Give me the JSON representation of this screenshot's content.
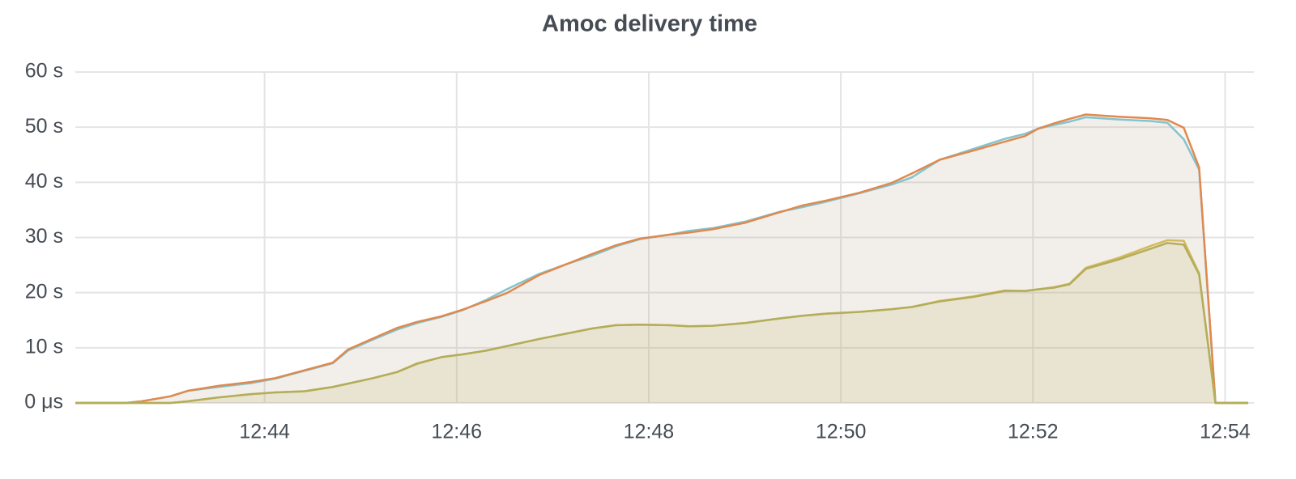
{
  "chart_data": {
    "type": "line",
    "title": "Amoc delivery time",
    "x": [
      42.03,
      42.55,
      42.72,
      43.02,
      43.2,
      43.52,
      43.86,
      44.11,
      44.41,
      44.71,
      44.87,
      45.13,
      45.38,
      45.59,
      45.84,
      46.06,
      46.31,
      46.52,
      46.86,
      47.15,
      47.41,
      47.66,
      47.91,
      48.21,
      48.42,
      48.67,
      49.01,
      49.35,
      49.6,
      49.85,
      50.19,
      50.53,
      50.74,
      51.03,
      51.37,
      51.71,
      51.92,
      52.05,
      52.22,
      52.38,
      52.55,
      52.89,
      53.23,
      53.4,
      53.57,
      53.73,
      53.9,
      54.24
    ],
    "series": [
      {
        "color": "#82c4cf",
        "values": [
          0,
          0,
          0.3,
          1.2,
          2.2,
          2.9,
          3.6,
          4.4,
          5.8,
          7.2,
          9.5,
          11.5,
          13.3,
          14.5,
          15.6,
          16.8,
          18.7,
          20.6,
          23.4,
          25.2,
          26.7,
          28.4,
          29.7,
          30.5,
          31.2,
          31.7,
          32.9,
          34.6,
          35.5,
          36.5,
          38.0,
          39.6,
          40.9,
          44.1,
          46.0,
          47.9,
          48.8,
          49.7,
          50.4,
          51.0,
          51.8,
          51.4,
          51.1,
          50.8,
          47.8,
          42.3,
          0,
          0
        ]
      },
      {
        "color": "#e0894e",
        "values": [
          0,
          0,
          0.3,
          1.2,
          2.2,
          3.1,
          3.8,
          4.5,
          5.9,
          7.3,
          9.7,
          11.7,
          13.6,
          14.7,
          15.7,
          16.9,
          18.5,
          19.9,
          23.2,
          25.2,
          27.0,
          28.6,
          29.8,
          30.5,
          30.9,
          31.5,
          32.7,
          34.5,
          35.8,
          36.7,
          38.1,
          39.9,
          41.6,
          44.1,
          45.7,
          47.4,
          48.4,
          49.7,
          50.7,
          51.5,
          52.3,
          51.9,
          51.6,
          51.3,
          49.9,
          42.7,
          0,
          0
        ]
      },
      {
        "color": "#d4b95e",
        "values": [
          0,
          0,
          0,
          0,
          0.3,
          1.0,
          1.6,
          1.9,
          2.1,
          2.9,
          3.5,
          4.5,
          5.6,
          7.2,
          8.3,
          8.8,
          9.5,
          10.3,
          11.6,
          12.6,
          13.5,
          14.1,
          14.2,
          14.1,
          13.9,
          14.0,
          14.5,
          15.3,
          15.8,
          16.2,
          16.5,
          17.0,
          17.4,
          18.5,
          19.3,
          20.4,
          20.3,
          20.6,
          21.0,
          21.6,
          24.5,
          26.3,
          28.5,
          29.5,
          29.4,
          23.5,
          0,
          0
        ]
      },
      {
        "color": "#b3ad5a",
        "values": [
          0,
          0,
          0,
          0,
          0.3,
          1.0,
          1.6,
          1.9,
          2.1,
          2.9,
          3.5,
          4.5,
          5.6,
          7.1,
          8.3,
          8.8,
          9.5,
          10.3,
          11.6,
          12.6,
          13.5,
          14.1,
          14.2,
          14.1,
          13.9,
          14.0,
          14.5,
          15.3,
          15.8,
          16.2,
          16.5,
          17.0,
          17.4,
          18.4,
          19.2,
          20.3,
          20.3,
          20.6,
          20.9,
          21.5,
          24.3,
          26.0,
          28.0,
          29.0,
          28.7,
          23.3,
          0,
          0
        ]
      }
    ],
    "xlim": [
      42.03,
      54.3
    ],
    "xticks": [
      {
        "value": 44,
        "label": "12:44"
      },
      {
        "value": 46,
        "label": "12:46"
      },
      {
        "value": 48,
        "label": "12:48"
      },
      {
        "value": 50,
        "label": "12:50"
      },
      {
        "value": 52,
        "label": "12:52"
      },
      {
        "value": 54,
        "label": "12:54"
      }
    ],
    "ylim": [
      0,
      60
    ],
    "yticks": [
      {
        "value": 0,
        "label": "0 μs"
      },
      {
        "value": 10,
        "label": "10 s"
      },
      {
        "value": 20,
        "label": "20 s"
      },
      {
        "value": 30,
        "label": "30 s"
      },
      {
        "value": 40,
        "label": "40 s"
      },
      {
        "value": 50,
        "label": "50 s"
      },
      {
        "value": 60,
        "label": "60 s"
      }
    ],
    "grid": true
  }
}
